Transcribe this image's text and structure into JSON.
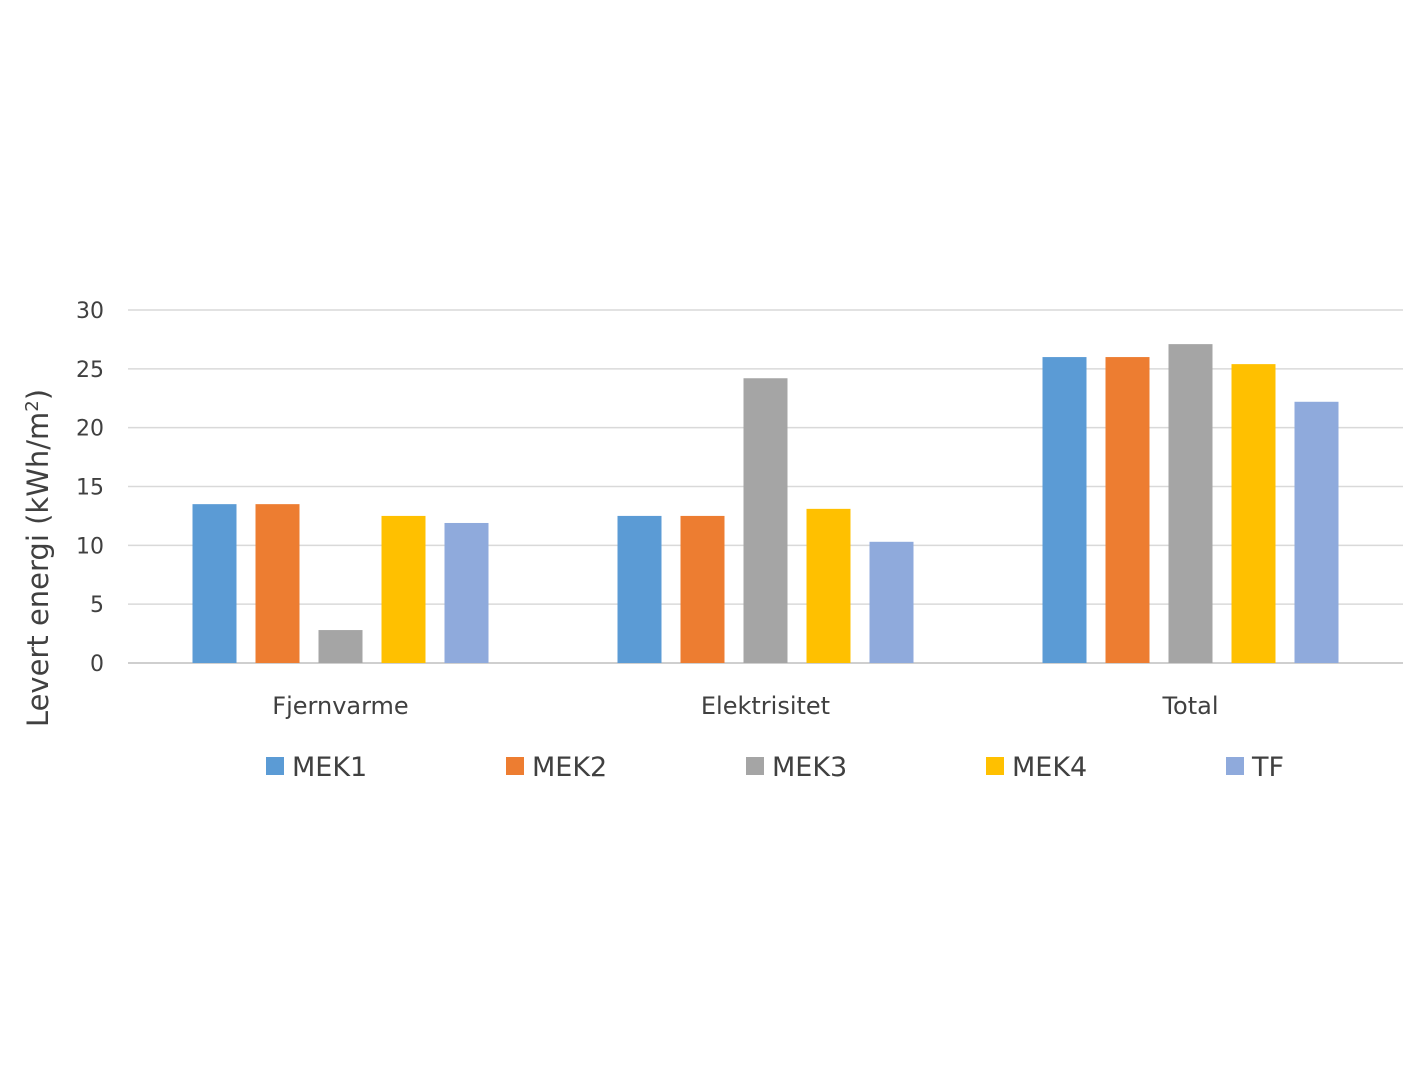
{
  "chart_data": {
    "type": "bar",
    "title": "",
    "xlabel": "",
    "ylabel": "Levert energi (kWh/m",
    "ylabel_superscript": "2",
    "ylabel_suffix": ")",
    "categories": [
      "Fjernvarme",
      "Elektrisitet",
      "Total"
    ],
    "series": [
      {
        "name": "MEK1",
        "color": "#5B9BD5",
        "values": [
          13.5,
          12.5,
          26.0
        ]
      },
      {
        "name": "MEK2",
        "color": "#ED7D31",
        "values": [
          13.5,
          12.5,
          26.0
        ]
      },
      {
        "name": "MEK3",
        "color": "#A5A5A5",
        "values": [
          2.8,
          24.2,
          27.1
        ]
      },
      {
        "name": "MEK4",
        "color": "#FFC000",
        "values": [
          12.5,
          13.1,
          25.4
        ]
      },
      {
        "name": "TF",
        "color": "#8FAADC",
        "values": [
          11.9,
          10.3,
          22.2
        ]
      }
    ],
    "ylim": [
      0,
      30
    ],
    "yticks": [
      "0",
      "5",
      "10",
      "15",
      "20",
      "25",
      "30"
    ],
    "grid": true,
    "legend_position": "bottom"
  }
}
